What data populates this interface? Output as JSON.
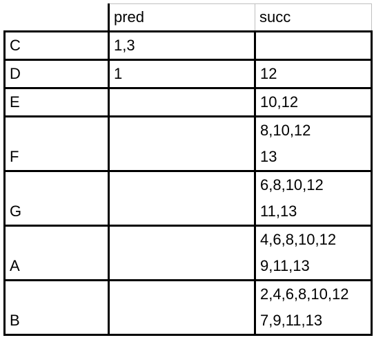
{
  "header": {
    "col_label": "",
    "pred": "pred",
    "succ": "succ"
  },
  "rows": [
    {
      "label": "C",
      "pred": "1,3",
      "succ": []
    },
    {
      "label": "D",
      "pred": "1",
      "succ": [
        "12"
      ]
    },
    {
      "label": "E",
      "pred": "",
      "succ": [
        "10,12"
      ]
    },
    {
      "label": "F",
      "pred": "",
      "succ": [
        "8,10,12",
        "13"
      ]
    },
    {
      "label": "G",
      "pred": "",
      "succ": [
        "6,8,10,12",
        "11,13"
      ]
    },
    {
      "label": "A",
      "pred": "",
      "succ": [
        "4,6,8,10,12",
        "9,11,13"
      ]
    },
    {
      "label": "B",
      "pred": "",
      "succ": [
        "2,4,6,8,10,12",
        "7,9,11,13"
      ]
    }
  ]
}
